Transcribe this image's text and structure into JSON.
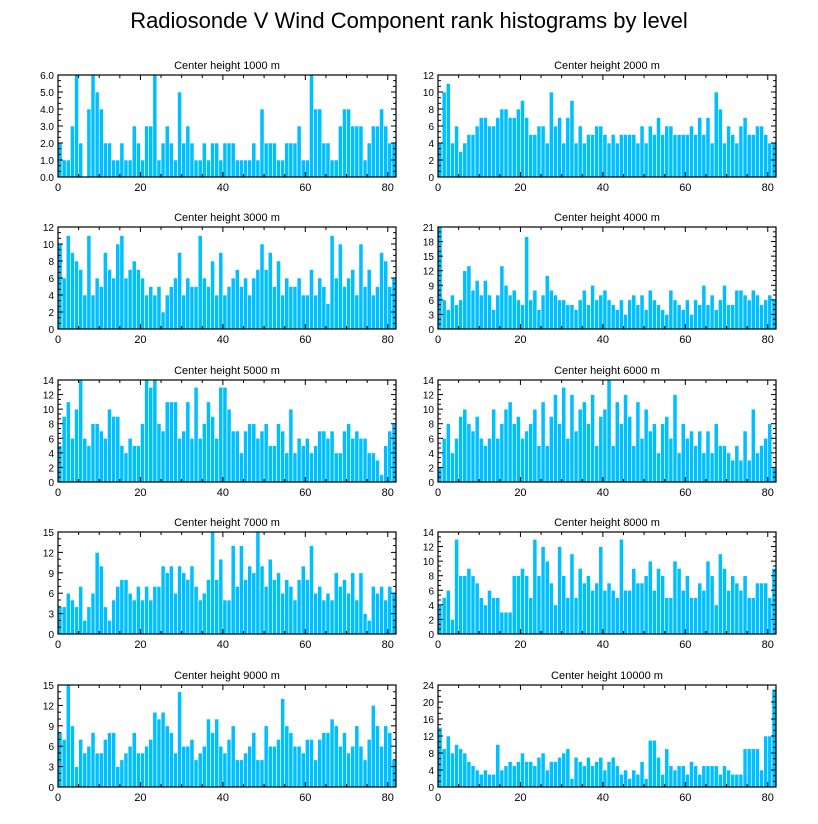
{
  "title": "Radiosonde V Wind Component rank histograms by level",
  "bar_color": "#00bfff",
  "bar_edge_color": "#ffffff",
  "chart_data": [
    {
      "type": "bar",
      "title": "Center height 1000 m",
      "xlim": [
        0,
        82
      ],
      "xticks": [
        0,
        20,
        40,
        60,
        80
      ],
      "ylim": [
        0,
        6
      ],
      "yticks": [
        0,
        1,
        2,
        3,
        4,
        5,
        6
      ],
      "ytick_labels": [
        "0.0",
        "1.0",
        "2.0",
        "3.0",
        "4.0",
        "5.0",
        "6.0"
      ],
      "values": [
        2,
        1,
        1,
        3,
        6,
        2,
        0,
        4,
        6,
        5,
        4,
        2,
        2,
        1,
        1,
        2,
        1,
        1,
        3,
        2,
        1,
        3,
        3,
        6,
        1,
        2,
        3,
        2,
        1,
        5,
        2,
        3,
        2,
        1,
        1,
        2,
        1,
        2,
        2,
        1,
        2,
        2,
        2,
        1,
        1,
        1,
        1,
        2,
        1,
        4,
        2,
        2,
        2,
        1,
        1,
        2,
        2,
        2,
        3,
        1,
        1,
        6,
        4,
        4,
        2,
        2,
        1,
        1,
        3,
        4,
        4,
        3,
        3,
        3,
        1,
        2,
        3,
        3,
        4,
        3,
        2,
        2
      ]
    },
    {
      "type": "bar",
      "title": "Center height 2000 m",
      "xlim": [
        0,
        82
      ],
      "xticks": [
        0,
        20,
        40,
        60,
        80
      ],
      "ylim": [
        0,
        12
      ],
      "yticks": [
        0,
        2,
        4,
        6,
        8,
        10,
        12
      ],
      "ytick_labels": [
        "0",
        "2",
        "4",
        "6",
        "8",
        "10",
        "12"
      ],
      "values": [
        4,
        10,
        11,
        4,
        6,
        3,
        4,
        5,
        5,
        6,
        7,
        7,
        6,
        6,
        7,
        8,
        8,
        7,
        7,
        8,
        9,
        7,
        5,
        5,
        6,
        6,
        4,
        10,
        6,
        7,
        4,
        7,
        9,
        4,
        6,
        4,
        5,
        5,
        6,
        6,
        5,
        4,
        5,
        4,
        5,
        5,
        5,
        5,
        4,
        6,
        4,
        6,
        5,
        7,
        5,
        6,
        6,
        5,
        5,
        5,
        5,
        6,
        5,
        7,
        5,
        7,
        4,
        10,
        8,
        4,
        6,
        5,
        4,
        6,
        7,
        5,
        5,
        6,
        6,
        5,
        4,
        4
      ]
    },
    {
      "type": "bar",
      "title": "Center height 3000 m",
      "xlim": [
        0,
        82
      ],
      "xticks": [
        0,
        20,
        40,
        60,
        80
      ],
      "ylim": [
        0,
        12
      ],
      "yticks": [
        0,
        2,
        4,
        6,
        8,
        10,
        12
      ],
      "ytick_labels": [
        "0",
        "2",
        "4",
        "6",
        "8",
        "10",
        "12"
      ],
      "values": [
        10,
        6,
        11,
        9,
        8,
        7,
        4,
        11,
        4,
        6,
        5,
        9,
        7,
        6,
        10,
        11,
        6,
        7,
        8,
        7,
        6,
        4,
        5,
        4,
        5,
        2,
        4,
        5,
        6,
        9,
        4,
        6,
        5,
        5,
        11,
        6,
        5,
        8,
        4,
        9,
        4,
        5,
        6,
        7,
        5,
        6,
        4,
        6,
        7,
        10,
        7,
        9,
        5,
        8,
        4,
        6,
        5,
        5,
        6,
        4,
        4,
        7,
        4,
        6,
        5,
        3,
        11,
        6,
        10,
        5,
        6,
        7,
        4,
        10,
        5,
        7,
        4,
        5,
        9,
        8,
        5,
        6
      ]
    },
    {
      "type": "bar",
      "title": "Center height 4000 m",
      "xlim": [
        0,
        82
      ],
      "xticks": [
        0,
        20,
        40,
        60,
        80
      ],
      "ylim": [
        0,
        21
      ],
      "yticks": [
        0,
        3,
        6,
        9,
        12,
        15,
        18,
        21
      ],
      "ytick_labels": [
        "0",
        "3",
        "6",
        "9",
        "12",
        "15",
        "18",
        "21"
      ],
      "values": [
        21,
        6,
        4,
        7,
        5,
        6,
        12,
        13,
        8,
        10,
        7,
        10,
        7,
        4,
        7,
        13,
        9,
        7,
        8,
        6,
        5,
        19,
        6,
        8,
        4,
        7,
        11,
        8,
        7,
        6,
        6,
        5,
        5,
        4,
        6,
        8,
        5,
        9,
        6,
        7,
        8,
        6,
        5,
        4,
        6,
        3,
        6,
        7,
        5,
        7,
        4,
        8,
        6,
        5,
        4,
        3,
        8,
        6,
        5,
        4,
        6,
        3,
        6,
        5,
        9,
        5,
        7,
        4,
        6,
        9,
        5,
        5,
        8,
        8,
        7,
        6,
        8,
        7,
        5,
        6,
        7,
        6
      ]
    },
    {
      "type": "bar",
      "title": "Center height 5000 m",
      "xlim": [
        0,
        82
      ],
      "xticks": [
        0,
        20,
        40,
        60,
        80
      ],
      "ylim": [
        0,
        14
      ],
      "yticks": [
        0,
        2,
        4,
        6,
        8,
        10,
        12,
        14
      ],
      "ytick_labels": [
        "0",
        "2",
        "4",
        "6",
        "8",
        "10",
        "12",
        "14"
      ],
      "values": [
        5,
        9,
        11,
        6,
        10,
        14,
        6,
        5,
        8,
        8,
        7,
        6,
        10,
        9,
        9,
        5,
        4,
        6,
        5,
        5,
        8,
        14,
        13,
        14,
        8,
        7,
        11,
        11,
        11,
        6,
        7,
        11,
        6,
        13,
        6,
        8,
        11,
        9,
        6,
        13,
        13,
        10,
        7,
        7,
        4,
        7,
        8,
        8,
        6,
        7,
        8,
        5,
        5,
        8,
        7,
        4,
        10,
        4,
        6,
        5,
        6,
        4,
        5,
        7,
        7,
        6,
        7,
        4,
        4,
        7,
        8,
        6,
        7,
        6,
        6,
        4,
        4,
        3,
        1,
        5,
        7,
        8
      ]
    },
    {
      "type": "bar",
      "title": "Center height 6000 m",
      "xlim": [
        0,
        82
      ],
      "xticks": [
        0,
        20,
        40,
        60,
        80
      ],
      "ylim": [
        0,
        14
      ],
      "yticks": [
        0,
        2,
        4,
        6,
        8,
        10,
        12,
        14
      ],
      "ytick_labels": [
        "0",
        "2",
        "4",
        "6",
        "8",
        "10",
        "12",
        "14"
      ],
      "values": [
        2,
        6,
        8,
        4,
        6,
        9,
        10,
        8,
        7,
        9,
        6,
        5,
        6,
        10,
        6,
        8,
        10,
        11,
        8,
        9,
        6,
        7,
        8,
        10,
        5,
        11,
        5,
        9,
        12,
        8,
        13,
        6,
        12,
        7,
        10,
        11,
        8,
        12,
        5,
        9,
        10,
        14,
        5,
        11,
        8,
        12,
        9,
        5,
        11,
        6,
        10,
        7,
        8,
        4,
        8,
        9,
        6,
        12,
        4,
        8,
        6,
        7,
        5,
        7,
        4,
        7,
        4,
        8,
        5,
        5,
        4,
        3,
        5,
        3,
        7,
        3,
        10,
        4,
        5,
        6,
        8,
        2
      ]
    },
    {
      "type": "bar",
      "title": "Center height 7000 m",
      "xlim": [
        0,
        82
      ],
      "xticks": [
        0,
        20,
        40,
        60,
        80
      ],
      "ylim": [
        0,
        15
      ],
      "yticks": [
        0,
        3,
        6,
        9,
        12,
        15
      ],
      "ytick_labels": [
        "0",
        "3",
        "6",
        "9",
        "12",
        "15"
      ],
      "values": [
        4,
        4,
        6,
        5,
        4,
        7,
        2,
        4,
        6,
        12,
        10,
        4,
        2,
        5,
        7,
        8,
        8,
        6,
        5,
        7,
        5,
        7,
        5,
        7,
        7,
        10,
        9,
        10,
        6,
        10,
        9,
        8,
        10,
        7,
        5,
        6,
        8,
        15,
        8,
        11,
        5,
        5,
        13,
        7,
        13,
        8,
        10,
        9,
        15,
        10,
        7,
        11,
        8,
        9,
        6,
        8,
        7,
        5,
        8,
        10,
        8,
        13,
        6,
        7,
        5,
        6,
        5,
        9,
        7,
        8,
        6,
        9,
        5,
        9,
        3,
        2,
        7,
        6,
        7,
        5,
        7,
        6
      ]
    },
    {
      "type": "bar",
      "title": "Center height 8000 m",
      "xlim": [
        0,
        82
      ],
      "xticks": [
        0,
        20,
        40,
        60,
        80
      ],
      "ylim": [
        0,
        14
      ],
      "yticks": [
        0,
        2,
        4,
        6,
        8,
        10,
        12,
        14
      ],
      "ytick_labels": [
        "0",
        "2",
        "4",
        "6",
        "8",
        "10",
        "12",
        "14"
      ],
      "values": [
        4,
        5,
        6,
        2,
        13,
        8,
        8,
        9,
        8,
        7,
        5,
        4,
        6,
        5,
        5,
        3,
        3,
        3,
        8,
        8,
        9,
        8,
        5,
        13,
        8,
        12,
        10,
        7,
        4,
        12,
        8,
        5,
        11,
        5,
        9,
        7,
        8,
        6,
        7,
        12,
        6,
        7,
        6,
        5,
        13,
        6,
        6,
        9,
        7,
        7,
        8,
        10,
        6,
        9,
        8,
        5,
        5,
        10,
        9,
        6,
        8,
        5,
        5,
        7,
        6,
        10,
        8,
        4,
        11,
        9,
        6,
        8,
        7,
        6,
        8,
        5,
        5,
        7,
        7,
        7,
        5,
        9
      ]
    },
    {
      "type": "bar",
      "title": "Center height 9000 m",
      "xlim": [
        0,
        82
      ],
      "xticks": [
        0,
        20,
        40,
        60,
        80
      ],
      "ylim": [
        0,
        15
      ],
      "yticks": [
        0,
        3,
        6,
        9,
        12,
        15
      ],
      "ytick_labels": [
        "0",
        "3",
        "6",
        "9",
        "12",
        "15"
      ],
      "values": [
        8,
        7,
        15,
        9,
        3,
        7,
        5,
        6,
        8,
        5,
        5,
        7,
        8,
        8,
        3,
        4,
        5,
        6,
        8,
        5,
        5,
        6,
        7,
        11,
        10,
        11,
        9,
        8,
        5,
        14,
        6,
        6,
        7,
        4,
        5,
        6,
        10,
        8,
        10,
        6,
        5,
        7,
        9,
        4,
        4,
        5,
        6,
        8,
        4,
        4,
        9,
        6,
        6,
        7,
        13,
        9,
        8,
        6,
        6,
        5,
        7,
        7,
        4,
        7,
        8,
        8,
        10,
        9,
        6,
        8,
        5,
        6,
        9,
        6,
        4,
        7,
        12,
        9,
        6,
        9,
        8,
        4
      ]
    },
    {
      "type": "bar",
      "title": "Center height 10000 m",
      "xlim": [
        0,
        82
      ],
      "xticks": [
        0,
        20,
        40,
        60,
        80
      ],
      "ylim": [
        0,
        24
      ],
      "yticks": [
        0,
        4,
        8,
        12,
        16,
        20,
        24
      ],
      "ytick_labels": [
        "0",
        "4",
        "8",
        "12",
        "16",
        "20",
        "24"
      ],
      "values": [
        14,
        9,
        12,
        8,
        10,
        9,
        8,
        6,
        5,
        4,
        3,
        4,
        3,
        3,
        10,
        4,
        5,
        6,
        5,
        6,
        8,
        6,
        6,
        5,
        7,
        8,
        4,
        6,
        6,
        7,
        8,
        9,
        2,
        7,
        6,
        5,
        7,
        5,
        6,
        7,
        4,
        6,
        7,
        5,
        3,
        4,
        2,
        4,
        3,
        6,
        2,
        11,
        11,
        7,
        3,
        9,
        5,
        4,
        5,
        5,
        3,
        6,
        5,
        3,
        5,
        5,
        5,
        5,
        3,
        5,
        4,
        3,
        3,
        3,
        9,
        9,
        9,
        9,
        4,
        12,
        12,
        23
      ]
    }
  ]
}
